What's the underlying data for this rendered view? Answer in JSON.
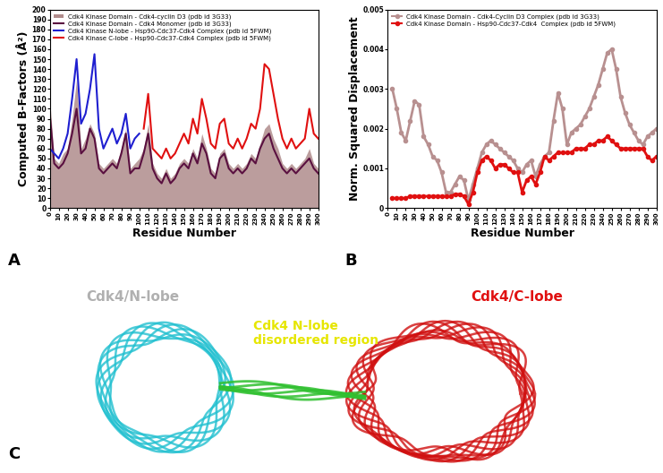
{
  "chart_data": [
    {
      "type": "line",
      "annotations": [
        "A"
      ],
      "x_label": "Residue Number",
      "y_label": "Computed B-Factors (Å²)",
      "legend": "upper left",
      "xlim": [
        0,
        300
      ],
      "xticks": [
        0,
        10,
        20,
        30,
        40,
        50,
        60,
        70,
        80,
        90,
        100,
        110,
        120,
        130,
        140,
        150,
        160,
        170,
        180,
        190,
        200,
        210,
        220,
        230,
        240,
        250,
        260,
        270,
        280,
        290,
        300
      ],
      "ylim": [
        0,
        200
      ],
      "yticks": [
        0,
        10,
        20,
        30,
        40,
        50,
        60,
        70,
        80,
        90,
        100,
        110,
        120,
        130,
        140,
        150,
        160,
        170,
        180,
        190,
        200
      ],
      "x": [
        0,
        5,
        10,
        15,
        20,
        25,
        30,
        35,
        40,
        45,
        50,
        55,
        60,
        65,
        70,
        75,
        80,
        85,
        90,
        95,
        100,
        105,
        110,
        115,
        120,
        125,
        130,
        135,
        140,
        145,
        150,
        155,
        160,
        165,
        170,
        175,
        180,
        185,
        190,
        195,
        200,
        205,
        210,
        215,
        220,
        225,
        230,
        235,
        240,
        245,
        250,
        255,
        260,
        265,
        270,
        275,
        280,
        285,
        290,
        295,
        300
      ],
      "series": [
        {
          "name": "Cdk4 Kinase Domain - Cdk4-cyclin D3 (pdb id 3G33)",
          "type": "area",
          "color": "#b08c8c",
          "values": [
            110,
            50,
            45,
            55,
            60,
            90,
            130,
            60,
            70,
            85,
            75,
            45,
            40,
            45,
            50,
            45,
            60,
            80,
            40,
            45,
            50,
            60,
            85,
            45,
            35,
            30,
            40,
            30,
            35,
            45,
            50,
            45,
            60,
            50,
            75,
            60,
            40,
            35,
            55,
            60,
            45,
            40,
            45,
            40,
            45,
            55,
            50,
            65,
            80,
            85,
            70,
            60,
            45,
            40,
            45,
            40,
            45,
            50,
            60,
            45,
            40
          ]
        },
        {
          "name": "Cdk4 Kinase Domain - Cdk4 Monomer (pdb id 3G33)",
          "type": "line",
          "color": "#5a1040",
          "values": [
            95,
            45,
            40,
            45,
            55,
            75,
            100,
            55,
            60,
            80,
            70,
            40,
            35,
            40,
            45,
            40,
            55,
            75,
            35,
            40,
            40,
            55,
            75,
            40,
            30,
            25,
            35,
            25,
            30,
            40,
            45,
            40,
            55,
            45,
            65,
            55,
            35,
            30,
            50,
            55,
            40,
            35,
            40,
            35,
            40,
            50,
            45,
            60,
            70,
            75,
            60,
            50,
            40,
            35,
            40,
            35,
            40,
            45,
            50,
            40,
            35
          ]
        },
        {
          "name": "Cdk4 Kinase N-lobe - Hsp90-Cdc37-Cdk4 Complex (pdb id 5FWM)",
          "type": "line",
          "color": "#1f1fd0",
          "values": [
            60,
            55,
            50,
            60,
            75,
            110,
            150,
            85,
            95,
            120,
            155,
            80,
            60,
            70,
            80,
            65,
            75,
            95,
            60,
            70,
            75,
            null,
            null,
            null,
            null,
            null,
            null,
            null,
            null,
            null,
            null,
            null,
            null,
            null,
            null,
            null,
            null,
            null,
            null,
            null,
            null,
            null,
            null,
            null,
            null,
            null,
            null,
            null,
            null,
            null,
            null,
            null,
            null,
            null,
            null,
            null,
            null,
            null,
            null,
            null,
            null
          ]
        },
        {
          "name": "Cdk4 Kinase C-lobe - Hsp90-Cdc37-Cdk4 Complex (pdb id 5FWM)",
          "type": "line",
          "color": "#e01010",
          "values": [
            null,
            null,
            null,
            null,
            null,
            null,
            null,
            null,
            null,
            null,
            null,
            null,
            null,
            null,
            null,
            null,
            null,
            null,
            null,
            null,
            null,
            80,
            115,
            60,
            55,
            50,
            60,
            50,
            55,
            65,
            75,
            65,
            90,
            75,
            110,
            90,
            65,
            60,
            85,
            90,
            65,
            60,
            70,
            60,
            70,
            85,
            80,
            100,
            145,
            140,
            115,
            90,
            70,
            60,
            70,
            60,
            65,
            70,
            100,
            75,
            70
          ]
        }
      ]
    },
    {
      "type": "line",
      "annotations": [
        "B"
      ],
      "x_label": "Residue Number",
      "y_label": "Norm. Squared Displacement",
      "legend": "upper left",
      "marker": "o",
      "xlim": [
        0,
        300
      ],
      "xticks": [
        0,
        10,
        20,
        30,
        40,
        50,
        60,
        70,
        80,
        90,
        100,
        110,
        120,
        130,
        140,
        150,
        160,
        170,
        180,
        190,
        200,
        210,
        220,
        230,
        240,
        250,
        260,
        270,
        280,
        290,
        300
      ],
      "ylim": [
        0,
        0.005
      ],
      "yticks": [
        0,
        0.001,
        0.002,
        0.003,
        0.004,
        0.005
      ],
      "x": [
        5,
        10,
        15,
        20,
        25,
        30,
        35,
        40,
        45,
        50,
        55,
        60,
        65,
        70,
        75,
        80,
        85,
        90,
        95,
        100,
        105,
        110,
        115,
        120,
        125,
        130,
        135,
        140,
        145,
        150,
        155,
        160,
        165,
        170,
        175,
        180,
        185,
        190,
        195,
        200,
        205,
        210,
        215,
        220,
        225,
        230,
        235,
        240,
        245,
        250,
        255,
        260,
        265,
        270,
        275,
        280,
        285,
        290,
        295,
        300
      ],
      "series": [
        {
          "name": "Cdk4 Kinase Domain - Cdk4-Cyclin D3 Complex (pdb id 3G33)",
          "color": "#b89090",
          "values": [
            0.003,
            0.0025,
            0.0019,
            0.0017,
            0.0022,
            0.0027,
            0.0026,
            0.0018,
            0.0016,
            0.0013,
            0.0012,
            0.0009,
            0.0004,
            0.0004,
            0.0006,
            0.0008,
            0.0007,
            0.0002,
            0.0006,
            0.001,
            0.0014,
            0.0016,
            0.0017,
            0.0016,
            0.0015,
            0.0014,
            0.0013,
            0.0012,
            0.001,
            0.0009,
            0.0011,
            0.0012,
            0.0008,
            0.0011,
            0.0013,
            0.0014,
            0.0022,
            0.0029,
            0.0025,
            0.0016,
            0.0019,
            0.002,
            0.0021,
            0.0023,
            0.0025,
            0.0028,
            0.0031,
            0.0035,
            0.0039,
            0.004,
            0.0035,
            0.0028,
            0.0024,
            0.0021,
            0.0019,
            0.0017,
            0.0016,
            0.0018,
            0.0019,
            0.002
          ]
        },
        {
          "name": "Cdk4 Kinase Domain - Hsp90-Cdc37-Cdk4  Complex (pdb id 5FWM)",
          "color": "#e01010",
          "values": [
            0.00025,
            0.00025,
            0.00025,
            0.00025,
            0.0003,
            0.0003,
            0.0003,
            0.0003,
            0.0003,
            0.0003,
            0.0003,
            0.0003,
            0.0003,
            0.0003,
            0.00035,
            0.00035,
            0.0003,
            0.0001,
            0.0004,
            0.0009,
            0.0012,
            0.0013,
            0.0012,
            0.001,
            0.0011,
            0.0011,
            0.001,
            0.0009,
            0.0009,
            0.0004,
            0.0007,
            0.0008,
            0.0006,
            0.0009,
            0.0013,
            0.0012,
            0.0013,
            0.0014,
            0.0014,
            0.0014,
            0.0014,
            0.0015,
            0.0015,
            0.0015,
            0.0016,
            0.0016,
            0.0017,
            0.0017,
            0.0018,
            0.0017,
            0.0016,
            0.0015,
            0.0015,
            0.0015,
            0.0015,
            0.0015,
            0.0015,
            0.0013,
            0.0012,
            0.0013
          ]
        }
      ]
    }
  ],
  "diagram": {
    "annotations": [
      "C"
    ],
    "labels": [
      {
        "text": "Cdk4/N-lobe",
        "color": "#b0b0b0"
      },
      {
        "text": "Cdk4 N-lobe disordered region",
        "color": "#e6e600"
      },
      {
        "text": "Cdk4/C-lobe",
        "color": "#e01010"
      }
    ]
  }
}
